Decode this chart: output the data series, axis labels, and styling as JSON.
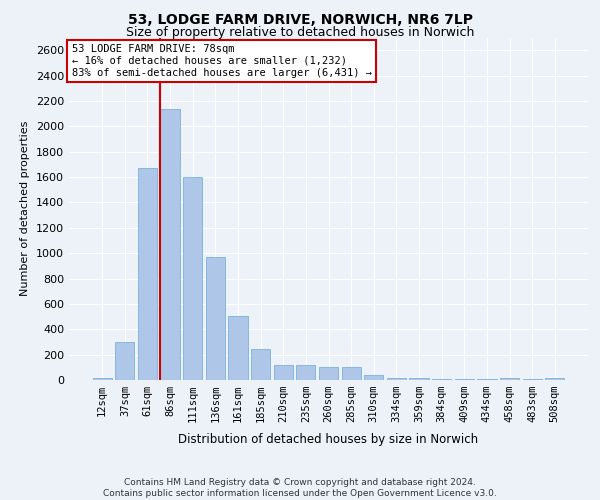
{
  "title": "53, LODGE FARM DRIVE, NORWICH, NR6 7LP",
  "subtitle": "Size of property relative to detached houses in Norwich",
  "xlabel": "Distribution of detached houses by size in Norwich",
  "ylabel": "Number of detached properties",
  "bar_color": "#aec6e8",
  "bar_edge_color": "#6aaad4",
  "categories": [
    "12sqm",
    "37sqm",
    "61sqm",
    "86sqm",
    "111sqm",
    "136sqm",
    "161sqm",
    "185sqm",
    "210sqm",
    "235sqm",
    "260sqm",
    "285sqm",
    "310sqm",
    "334sqm",
    "359sqm",
    "384sqm",
    "409sqm",
    "434sqm",
    "458sqm",
    "483sqm",
    "508sqm"
  ],
  "values": [
    15,
    300,
    1670,
    2140,
    1600,
    970,
    505,
    245,
    120,
    120,
    100,
    100,
    40,
    15,
    15,
    5,
    5,
    5,
    15,
    5,
    15
  ],
  "ylim": [
    0,
    2700
  ],
  "yticks": [
    0,
    200,
    400,
    600,
    800,
    1000,
    1200,
    1400,
    1600,
    1800,
    2000,
    2200,
    2400,
    2600
  ],
  "annotation_line1": "53 LODGE FARM DRIVE: 78sqm",
  "annotation_line2": "← 16% of detached houses are smaller (1,232)",
  "annotation_line3": "83% of semi-detached houses are larger (6,431) →",
  "vline_color": "#cc0000",
  "vline_x": 2.575,
  "footer1": "Contains HM Land Registry data © Crown copyright and database right 2024.",
  "footer2": "Contains public sector information licensed under the Open Government Licence v3.0.",
  "bg_color": "#edf2f9",
  "grid_color": "#ffffff",
  "title_fontsize": 10,
  "subtitle_fontsize": 9,
  "ylabel_fontsize": 8,
  "xlabel_fontsize": 8.5,
  "tick_fontsize": 7.5,
  "annotation_fontsize": 7.5,
  "footer_fontsize": 6.5
}
